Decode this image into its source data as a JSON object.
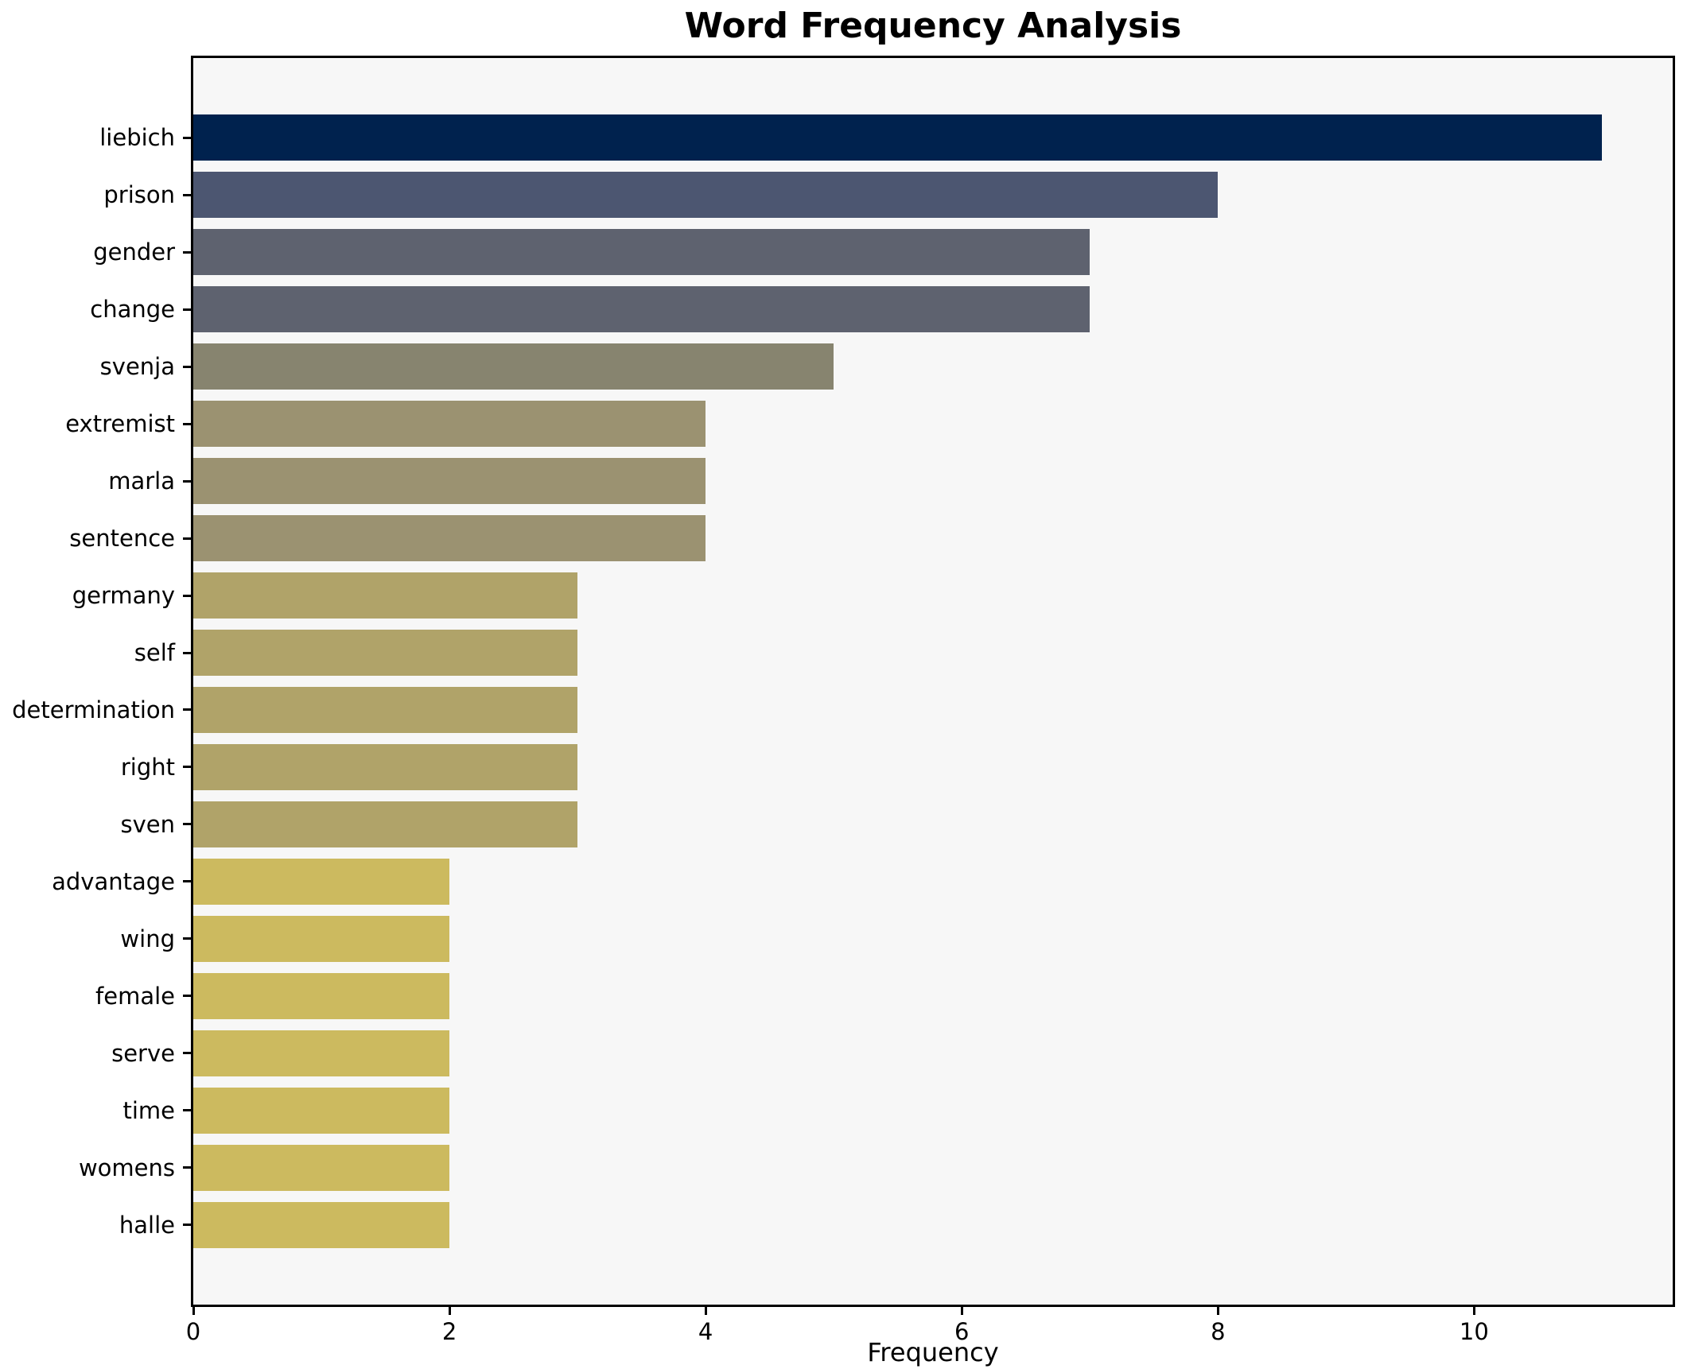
{
  "chart_data": {
    "type": "bar",
    "orientation": "horizontal",
    "title": "Word Frequency Analysis",
    "xlabel": "Frequency",
    "ylabel": "",
    "grid": false,
    "legend": null,
    "plot_background": "#f7f7f7",
    "figure_background": "#ffffff",
    "spine_color": "#000000",
    "categories": [
      "liebich",
      "prison",
      "gender",
      "change",
      "svenja",
      "extremist",
      "marla",
      "sentence",
      "germany",
      "self",
      "determination",
      "right",
      "sven",
      "advantage",
      "wing",
      "female",
      "serve",
      "time",
      "womens",
      "halle"
    ],
    "values": [
      11,
      8,
      7,
      7,
      5,
      4,
      4,
      4,
      3,
      3,
      3,
      3,
      3,
      2,
      2,
      2,
      2,
      2,
      2,
      2
    ],
    "bar_colors": [
      "#00224e",
      "#4c5671",
      "#5e626f",
      "#5e626f",
      "#87846f",
      "#9b9271",
      "#9b9271",
      "#9b9271",
      "#b0a369",
      "#b0a369",
      "#b0a369",
      "#b0a369",
      "#b0a369",
      "#ccba5f",
      "#ccba5f",
      "#ccba5f",
      "#ccba5f",
      "#ccba5f",
      "#ccba5f",
      "#ccba5f"
    ],
    "xlim": [
      0,
      11.55
    ],
    "xticks": [
      {
        "value": 0,
        "label": "0"
      },
      {
        "value": 2,
        "label": "2"
      },
      {
        "value": 4,
        "label": "4"
      },
      {
        "value": 6,
        "label": "6"
      },
      {
        "value": 8,
        "label": "8"
      },
      {
        "value": 10,
        "label": "10"
      }
    ],
    "ylim_units": 21.78,
    "first_center_unit": 1.39,
    "bar_height_ratio": 0.8
  }
}
